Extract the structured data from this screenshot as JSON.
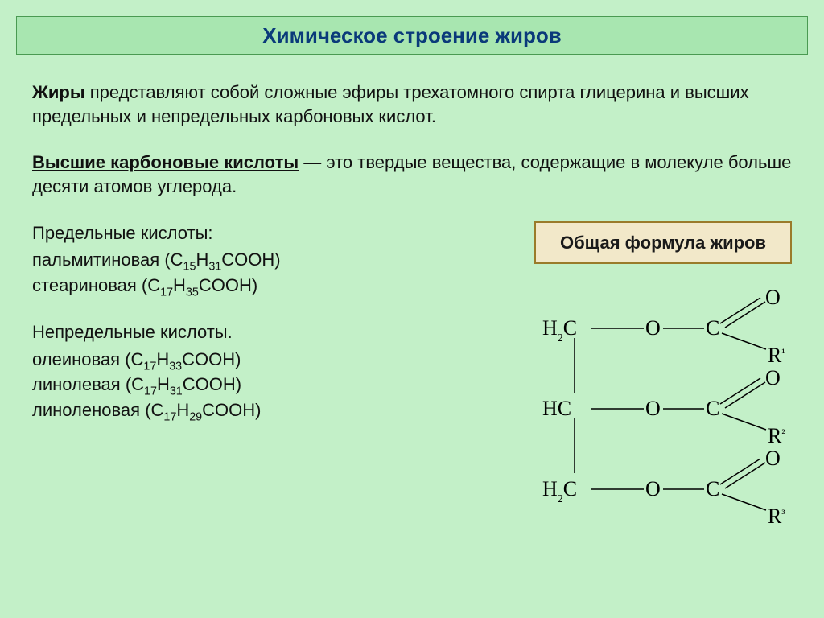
{
  "title": "Химическое строение жиров",
  "definition_bold": "Жиры",
  "definition_rest": " представляют собой сложные эфиры трехатомного спирта глицерина и высших предельных и непредельных карбоновых кислот.",
  "higher_bold": "Высшие карбоновые кислоты",
  "higher_rest": " — это твердые вещества, содержащие в молекуле больше десяти атомов углерода.",
  "saturated_head": "Предельные кислоты:",
  "saturated": [
    {
      "name": "пальмитиновая",
      "sub1": "15",
      "sub2": "31"
    },
    {
      "name": "стеариновая",
      "sub1": "17",
      "sub2": "35"
    }
  ],
  "unsaturated_head": "Непредельные кислоты.",
  "unsaturated": [
    {
      "name": "олеиновая",
      "sub1": "17",
      "sub2": "33"
    },
    {
      "name": "линолевая",
      "sub1": "17",
      "sub2": "31"
    },
    {
      "name": "линоленовая",
      "sub1": "17",
      "sub2": "29"
    }
  ],
  "formula_label": "Общая формула жиров",
  "colors": {
    "page_bg": "#c3f0c8",
    "title_bg": "#a8e6b0",
    "title_border": "#4a9a52",
    "title_text": "#0a3a7a",
    "box_bg": "#f2e8c9",
    "box_border": "#9a7b2a",
    "text": "#111111",
    "structure_stroke": "#000000"
  },
  "structure": {
    "rows": [
      {
        "left": "H₂C",
        "r": "R¹"
      },
      {
        "left": "HC",
        "r": "R²"
      },
      {
        "left": "H₂C",
        "r": "R³"
      }
    ],
    "font_family": "Times New Roman",
    "font_size_label": 24,
    "stroke_width": 1.5
  }
}
